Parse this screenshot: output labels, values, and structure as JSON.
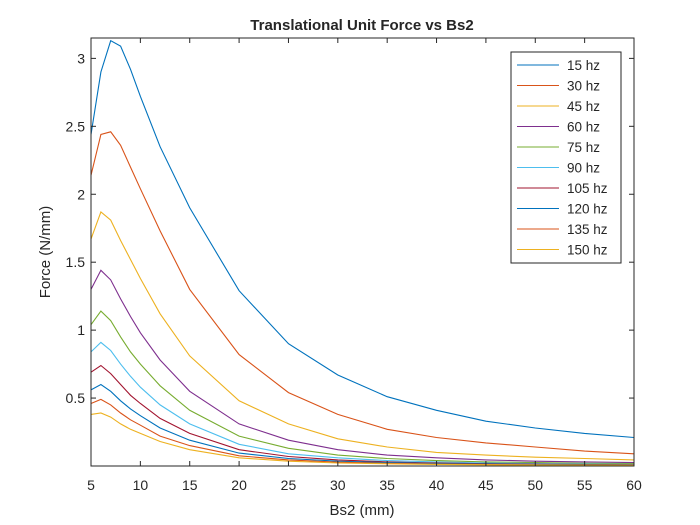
{
  "chart_data": {
    "type": "line",
    "title": "Translational Unit Force vs Bs2",
    "xlabel": "Bs2 (mm)",
    "ylabel": "Force (N/mm)",
    "xlim": [
      5,
      60
    ],
    "ylim": [
      0,
      3.15
    ],
    "xticks": [
      5,
      10,
      15,
      20,
      25,
      30,
      35,
      40,
      45,
      50,
      55,
      60
    ],
    "yticks": [
      0.5,
      1,
      1.5,
      2,
      2.5,
      3
    ],
    "ytick_labels": [
      "0.5",
      "1",
      "1.5",
      "2",
      "2.5",
      "3"
    ],
    "grid": false,
    "legend_position": "top-right",
    "x": [
      5,
      6,
      7,
      8,
      9,
      10,
      12,
      15,
      20,
      25,
      30,
      35,
      40,
      45,
      50,
      55,
      60
    ],
    "series": [
      {
        "name": "15 hz",
        "color": "#0072BD",
        "values": [
          2.44,
          2.9,
          3.13,
          3.09,
          2.92,
          2.72,
          2.35,
          1.9,
          1.29,
          0.9,
          0.67,
          0.51,
          0.41,
          0.33,
          0.28,
          0.24,
          0.21
        ]
      },
      {
        "name": "30 hz",
        "color": "#D95319",
        "values": [
          2.14,
          2.44,
          2.46,
          2.36,
          2.2,
          2.04,
          1.73,
          1.3,
          0.82,
          0.54,
          0.38,
          0.27,
          0.21,
          0.17,
          0.14,
          0.11,
          0.09
        ]
      },
      {
        "name": "45 hz",
        "color": "#EDB120",
        "values": [
          1.67,
          1.87,
          1.81,
          1.66,
          1.52,
          1.38,
          1.12,
          0.81,
          0.48,
          0.31,
          0.2,
          0.14,
          0.1,
          0.08,
          0.065,
          0.055,
          0.045
        ]
      },
      {
        "name": "60 hz",
        "color": "#7E2F8E",
        "values": [
          1.3,
          1.44,
          1.37,
          1.23,
          1.1,
          0.98,
          0.78,
          0.55,
          0.31,
          0.19,
          0.12,
          0.08,
          0.06,
          0.045,
          0.035,
          0.03,
          0.025
        ]
      },
      {
        "name": "75 hz",
        "color": "#77AC30",
        "values": [
          1.04,
          1.14,
          1.07,
          0.95,
          0.84,
          0.75,
          0.59,
          0.41,
          0.22,
          0.13,
          0.08,
          0.055,
          0.04,
          0.03,
          0.025,
          0.02,
          0.018
        ]
      },
      {
        "name": "90 hz",
        "color": "#4DBEEE",
        "values": [
          0.84,
          0.91,
          0.85,
          0.75,
          0.66,
          0.58,
          0.45,
          0.31,
          0.16,
          0.09,
          0.06,
          0.04,
          0.03,
          0.022,
          0.018,
          0.015,
          0.012
        ]
      },
      {
        "name": "105 hz",
        "color": "#A2142F",
        "values": [
          0.69,
          0.74,
          0.68,
          0.6,
          0.52,
          0.46,
          0.35,
          0.24,
          0.12,
          0.07,
          0.045,
          0.03,
          0.022,
          0.017,
          0.013,
          0.011,
          0.009
        ]
      },
      {
        "name": "120 hz",
        "color": "#0072BD",
        "values": [
          0.56,
          0.6,
          0.55,
          0.48,
          0.42,
          0.37,
          0.28,
          0.19,
          0.095,
          0.055,
          0.035,
          0.025,
          0.018,
          0.014,
          0.011,
          0.009,
          0.008
        ]
      },
      {
        "name": "135 hz",
        "color": "#D95319",
        "values": [
          0.46,
          0.49,
          0.45,
          0.39,
          0.34,
          0.3,
          0.22,
          0.15,
          0.075,
          0.045,
          0.028,
          0.02,
          0.015,
          0.011,
          0.009,
          0.007,
          0.006
        ]
      },
      {
        "name": "150 hz",
        "color": "#EDB120",
        "values": [
          0.38,
          0.39,
          0.36,
          0.31,
          0.27,
          0.24,
          0.18,
          0.12,
          0.06,
          0.035,
          0.022,
          0.016,
          0.012,
          0.009,
          0.007,
          0.006,
          0.005
        ]
      }
    ]
  }
}
